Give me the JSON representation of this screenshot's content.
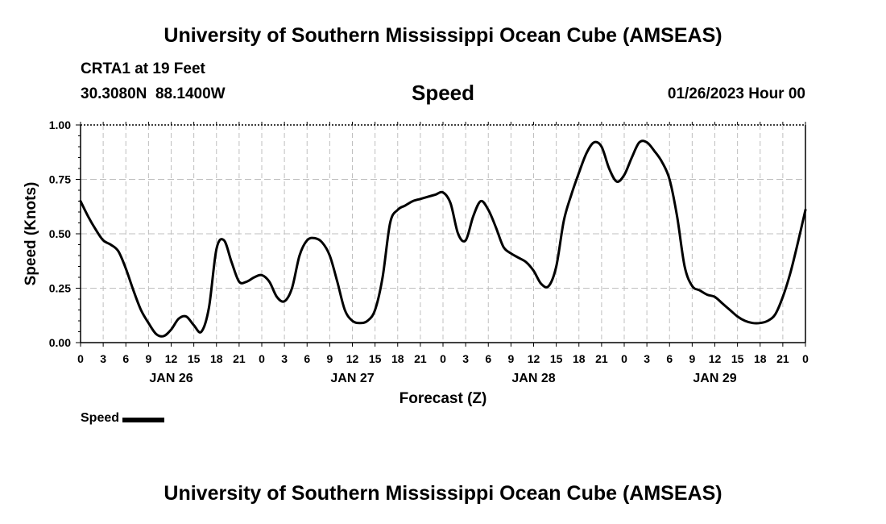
{
  "header": {
    "title": "University of Southern Mississippi Ocean Cube (AMSEAS)",
    "station": "CRTA1 at 19 Feet",
    "coords": "30.3080N  88.1400W",
    "parameter": "Speed",
    "datetime": "01/26/2023 Hour 00"
  },
  "footer": {
    "title": "University of Southern Mississippi Ocean Cube (AMSEAS)"
  },
  "legend": {
    "label": "Speed"
  },
  "chart_data": {
    "type": "line",
    "title": "Speed",
    "xlabel": "Forecast (Z)",
    "ylabel": "Speed (Knots)",
    "xlim": [
      0,
      96
    ],
    "ylim": [
      0,
      1
    ],
    "grid": true,
    "line_color": "#000000",
    "grid_color": "#bfbfbf",
    "x_tick_labels": [
      "0",
      "3",
      "6",
      "9",
      "12",
      "15",
      "18",
      "21",
      "0",
      "3",
      "6",
      "9",
      "12",
      "15",
      "18",
      "21",
      "0",
      "3",
      "6",
      "9",
      "12",
      "15",
      "18",
      "21",
      "0",
      "3",
      "6",
      "9",
      "12",
      "15",
      "18",
      "21",
      "0"
    ],
    "y_ticks": [
      0,
      0.25,
      0.5,
      0.75,
      1.0
    ],
    "y_tick_labels": [
      "0.00",
      "0.25",
      "0.50",
      "0.75",
      "1.00"
    ],
    "day_labels": [
      {
        "hour": 12,
        "label": "JAN 26"
      },
      {
        "hour": 36,
        "label": "JAN 27"
      },
      {
        "hour": 60,
        "label": "JAN 28"
      },
      {
        "hour": 84,
        "label": "JAN 29"
      }
    ],
    "series": [
      {
        "name": "Speed",
        "x": [
          0,
          1,
          2,
          3,
          4,
          5,
          6,
          7,
          8,
          9,
          10,
          11,
          12,
          13,
          14,
          15,
          16,
          17,
          18,
          19,
          20,
          21,
          22,
          23,
          24,
          25,
          26,
          27,
          28,
          29,
          30,
          31,
          32,
          33,
          34,
          35,
          36,
          37,
          38,
          39,
          40,
          41,
          42,
          43,
          44,
          45,
          46,
          47,
          48,
          49,
          50,
          51,
          52,
          53,
          54,
          55,
          56,
          57,
          58,
          59,
          60,
          61,
          62,
          63,
          64,
          65,
          66,
          67,
          68,
          69,
          70,
          71,
          72,
          73,
          74,
          75,
          76,
          77,
          78,
          79,
          80,
          81,
          82,
          83,
          84,
          85,
          86,
          87,
          88,
          89,
          90,
          91,
          92,
          93,
          94,
          95,
          96
        ],
        "values": [
          0.65,
          0.58,
          0.52,
          0.47,
          0.45,
          0.42,
          0.34,
          0.24,
          0.15,
          0.09,
          0.04,
          0.03,
          0.06,
          0.11,
          0.12,
          0.08,
          0.05,
          0.16,
          0.43,
          0.47,
          0.37,
          0.28,
          0.28,
          0.3,
          0.31,
          0.28,
          0.21,
          0.19,
          0.25,
          0.4,
          0.47,
          0.48,
          0.46,
          0.4,
          0.28,
          0.15,
          0.1,
          0.09,
          0.1,
          0.15,
          0.3,
          0.55,
          0.61,
          0.63,
          0.65,
          0.66,
          0.67,
          0.68,
          0.69,
          0.64,
          0.5,
          0.47,
          0.58,
          0.65,
          0.61,
          0.53,
          0.44,
          0.41,
          0.39,
          0.37,
          0.33,
          0.27,
          0.26,
          0.35,
          0.56,
          0.68,
          0.78,
          0.87,
          0.92,
          0.9,
          0.8,
          0.74,
          0.77,
          0.85,
          0.92,
          0.92,
          0.88,
          0.83,
          0.75,
          0.58,
          0.35,
          0.26,
          0.24,
          0.22,
          0.21,
          0.18,
          0.15,
          0.12,
          0.1,
          0.09,
          0.09,
          0.1,
          0.13,
          0.21,
          0.32,
          0.46,
          0.61
        ]
      }
    ]
  }
}
